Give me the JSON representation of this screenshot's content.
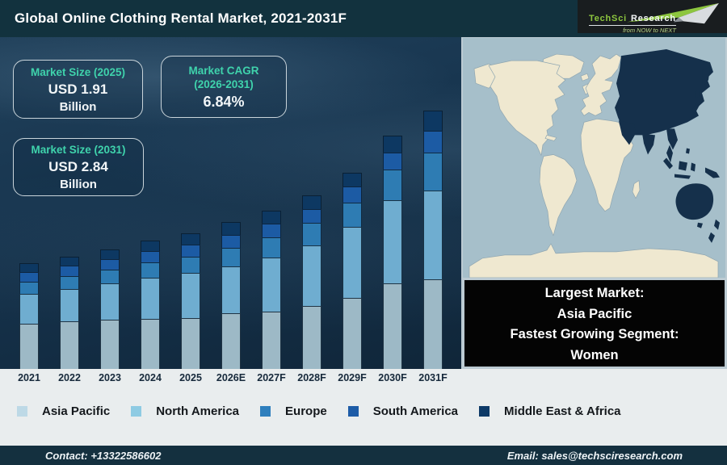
{
  "header": {
    "title": "Global Online Clothing Rental Market, 2021-2031F",
    "logo": {
      "brand": "TechSci",
      "brand2": "Research",
      "tagline": "from NOW to NEXT",
      "green": "#8dc63f"
    }
  },
  "info_boxes": [
    {
      "heading": "Market Size (2025)",
      "value": "USD 1.91",
      "unit": "Billion"
    },
    {
      "heading": "Market CAGR",
      "heading2": "(2026-2031)",
      "value": "6.84%"
    },
    {
      "heading": "Market Size (2031)",
      "value": "USD 2.84",
      "unit": "Billion"
    }
  ],
  "chart_data": {
    "type": "bar",
    "stacked": true,
    "title": "Global Online Clothing Rental Market, 2021-2031F",
    "categories": [
      "2021",
      "2022",
      "2023",
      "2024",
      "2025",
      "2026E",
      "2027F",
      "2028F",
      "2029F",
      "2030F",
      "2031F"
    ],
    "series": [
      {
        "name": "Asia Pacific",
        "color": "#9db9c6",
        "legend_color": "#bdd9e6",
        "values": [
          56,
          59,
          61,
          62,
          63,
          69,
          71,
          78,
          88,
          106,
          111
        ]
      },
      {
        "name": "North America",
        "color": "#6fadd0",
        "legend_color": "#8ecbe3",
        "values": [
          37,
          40,
          45,
          51,
          56,
          58,
          67,
          75,
          88,
          103,
          110
        ]
      },
      {
        "name": "Europe",
        "color": "#2e7cb3",
        "legend_color": "#2e7fbd",
        "values": [
          15,
          16,
          17,
          19,
          20,
          23,
          25,
          28,
          30,
          38,
          47
        ]
      },
      {
        "name": "South America",
        "color": "#1c5ba4",
        "legend_color": "#1d5ca7",
        "values": [
          12,
          13,
          13,
          14,
          15,
          16,
          17,
          17,
          20,
          21,
          27
        ]
      },
      {
        "name": "Middle East & Africa",
        "color": "#0d3862",
        "legend_color": "#0d3a67",
        "values": [
          11,
          11,
          12,
          13,
          14,
          16,
          16,
          17,
          17,
          21,
          25
        ]
      }
    ],
    "y_unit": "relative bar height (px); no numeric y-axis shown",
    "xlabel": "",
    "ylabel": "",
    "grid": false,
    "legend_position": "bottom",
    "annotations": [
      "Market Size (2025): USD 1.91 Billion",
      "Market CAGR (2026-2031): 6.84%",
      "Market Size (2031): USD 2.84 Billion"
    ]
  },
  "map": {
    "ocean_color": "#a6bfca",
    "land_color": "#efe8d0",
    "highlight_color": "#15304b",
    "highlighted_region": "Asia Pacific"
  },
  "callout": {
    "lines": [
      "Largest Market:",
      "Asia Pacific",
      "Fastest Growing Segment:",
      "Women"
    ]
  },
  "footer": {
    "contact": "Contact: +13322586602",
    "email": "Email: sales@techsciresearch.com"
  },
  "colors": {
    "header_bg": "#12323e",
    "footer_bg": "#14303f",
    "strip_bg": "#e9edee",
    "accent_teal": "#3fd3ac",
    "callout_bg": "#040404"
  }
}
